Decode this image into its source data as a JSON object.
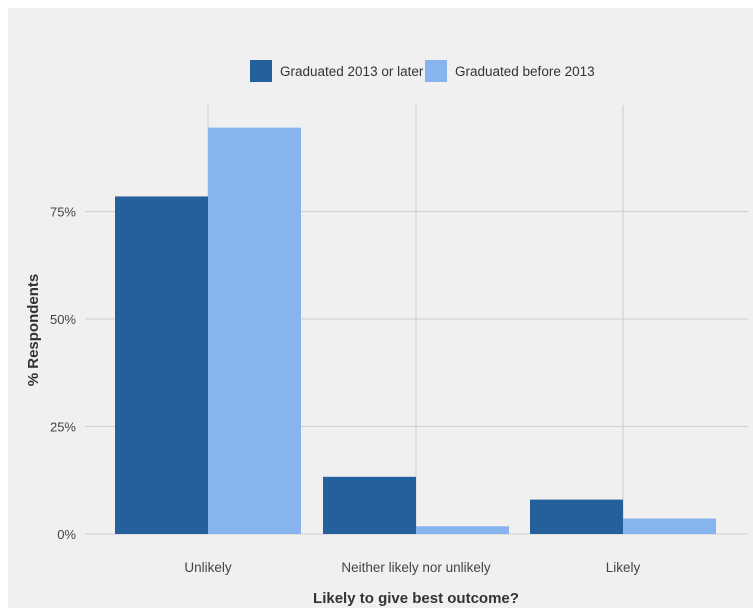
{
  "chart_data": {
    "type": "bar",
    "categories": [
      "Unlikely",
      "Neither likely nor unlikely",
      "Likely"
    ],
    "series": [
      {
        "name": "Graduated 2013 or later",
        "values": [
          78.5,
          13.3,
          8.0
        ],
        "color": "#24609b"
      },
      {
        "name": "Graduated before 2013",
        "values": [
          94.5,
          1.8,
          3.6
        ],
        "color": "#87b4ef"
      }
    ],
    "xlabel": "Likely to give best outcome?",
    "ylabel": "% Respondents",
    "ylim": [
      0,
      100
    ],
    "yticks": [
      0,
      25,
      50,
      75
    ],
    "ytick_labels": [
      "0%",
      "25%",
      "50%",
      "75%"
    ],
    "grid": true,
    "legend_position": "top",
    "panel_background": "#f0f0f0",
    "grid_color": "#d2d2d2"
  }
}
